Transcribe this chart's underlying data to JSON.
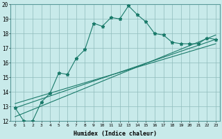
{
  "xlabel": "Humidex (Indice chaleur)",
  "ylabel": "",
  "bg_color": "#c8eaea",
  "line_color": "#1a7a6a",
  "grid_color": "#8fbcbc",
  "xlim": [
    -0.5,
    23.5
  ],
  "ylim": [
    12,
    20
  ],
  "xticks": [
    0,
    1,
    2,
    3,
    4,
    5,
    6,
    7,
    8,
    9,
    10,
    11,
    12,
    13,
    14,
    15,
    16,
    17,
    18,
    19,
    20,
    21,
    22,
    23
  ],
  "yticks": [
    12,
    13,
    14,
    15,
    16,
    17,
    18,
    19,
    20
  ],
  "main_x": [
    0,
    1,
    2,
    3,
    4,
    5,
    6,
    7,
    8,
    9,
    10,
    11,
    12,
    13,
    14,
    15,
    16,
    17,
    18,
    19,
    20,
    21,
    22,
    23
  ],
  "main_y": [
    12.9,
    12.0,
    12.0,
    13.3,
    13.9,
    15.3,
    15.2,
    16.3,
    16.9,
    18.7,
    18.5,
    19.1,
    19.0,
    19.9,
    19.3,
    18.8,
    18.0,
    17.9,
    17.4,
    17.3,
    17.3,
    17.3,
    17.7,
    17.6
  ],
  "line2_x": [
    0,
    23
  ],
  "line2_y": [
    12.9,
    17.6
  ],
  "line3_x": [
    0,
    23
  ],
  "line3_y": [
    12.3,
    17.9
  ],
  "line4_x": [
    0,
    23
  ],
  "line4_y": [
    13.2,
    17.3
  ],
  "xtick_fontsize": 4.5,
  "ytick_fontsize": 5.5,
  "xlabel_fontsize": 6.0
}
